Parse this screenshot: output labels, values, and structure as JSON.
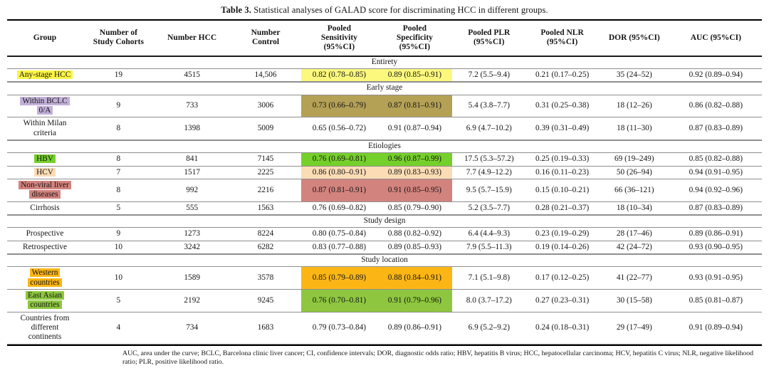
{
  "title": {
    "label_bold": "Table 3.",
    "text": " Statistical analyses of GALAD score for discriminating HCC in different groups."
  },
  "colors": {
    "yellow": "#fbf444",
    "yellow_cell": "#fbf87d",
    "purple": "#c3b0d9",
    "olive": "#b4a156",
    "green": "#76d02c",
    "peach": "#fbdcb5",
    "salmon": "#d3837e",
    "orange": "#fbb616",
    "lime": "#8ec73f"
  },
  "table": {
    "columns": [
      "Group",
      "Number of\nStudy Cohorts",
      "Number HCC",
      "Number\nControl",
      "Pooled\nSensitivity\n(95%CI)",
      "Pooled\nSpecificity\n(95%CI)",
      "Pooled PLR\n(95%CI)",
      "Pooled NLR\n(95%CI)",
      "DOR (95%CI)",
      "AUC (95%CI)"
    ],
    "sections": [
      {
        "label": "Entirety",
        "rows": [
          {
            "group": "Any-stage HCC",
            "hl": {
              "group": "yellow",
              "sens": "yellow_cell",
              "spec": "yellow_cell"
            },
            "cells": [
              "19",
              "4515",
              "14,506",
              "0.82 (0.78–0.85)",
              "0.89 (0.85–0.91)",
              "7.2 (5.5–9.4)",
              "0.21 (0.17–0.25)",
              "35 (24–52)",
              "0.92 (0.89–0.94)"
            ]
          }
        ]
      },
      {
        "label": "Early stage",
        "rows": [
          {
            "group": "Within BCLC\n0/A",
            "hl": {
              "group": "purple",
              "sens": "olive",
              "spec": "olive"
            },
            "cells": [
              "9",
              "733",
              "3006",
              "0.73 (0.66–0.79)",
              "0.87 (0.81–0.91)",
              "5.4 (3.8–7.7)",
              "0.31 (0.25–0.38)",
              "18 (12–26)",
              "0.86 (0.82–0.88)"
            ]
          },
          {
            "group": "Within Milan\ncriteria",
            "cells": [
              "8",
              "1398",
              "5009",
              "0.65 (0.56–0.72)",
              "0.91 (0.87–0.94)",
              "6.9 (4.7–10.2)",
              "0.39 (0.31–0.49)",
              "18 (11–30)",
              "0.87 (0.83–0.89)"
            ]
          }
        ]
      },
      {
        "label": "Etiologies",
        "rows": [
          {
            "group": "HBV",
            "hl": {
              "group": "green",
              "sens": "green",
              "spec": "green"
            },
            "cells": [
              "8",
              "841",
              "7145",
              "0.76 (0.69–0.81)",
              "0.96 (0.87–0.99)",
              "17.5 (5.3–57.2)",
              "0.25 (0.19–0.33)",
              "69 (19–249)",
              "0.85 (0.82–0.88)"
            ]
          },
          {
            "group": "HCV",
            "hl": {
              "group": "peach",
              "sens": "peach",
              "spec": "peach"
            },
            "cells": [
              "7",
              "1517",
              "2225",
              "0.86 (0.80–0.91)",
              "0.89 (0.83–0.93)",
              "7.7 (4.9–12.2)",
              "0.16 (0.11–0.23)",
              "50 (26–94)",
              "0.94 (0.91–0.95)"
            ]
          },
          {
            "group": "Non-viral liver\ndiseases",
            "hl": {
              "group": "salmon",
              "sens": "salmon",
              "spec": "salmon"
            },
            "cells": [
              "8",
              "992",
              "2216",
              "0.87 (0.81–0.91)",
              "0.91 (0.85–0.95)",
              "9.5 (5.7–15.9)",
              "0.15 (0.10–0.21)",
              "66 (36–121)",
              "0.94 (0.92–0.96)"
            ]
          },
          {
            "group": "Cirrhosis",
            "cells": [
              "5",
              "555",
              "1563",
              "0.76 (0.69–0.82)",
              "0.85 (0.79–0.90)",
              "5.2 (3.5–7.7)",
              "0.28 (0.21–0.37)",
              "18 (10–34)",
              "0.87 (0.83–0.89)"
            ]
          }
        ]
      },
      {
        "label": "Study design",
        "rows": [
          {
            "group": "Prospective",
            "cells": [
              "9",
              "1273",
              "8224",
              "0.80 (0.75–0.84)",
              "0.88 (0.82–0.92)",
              "6.4 (4.4–9.3)",
              "0.23 (0.19–0.29)",
              "28 (17–46)",
              "0.89 (0.86–0.91)"
            ]
          },
          {
            "group": "Retrospective",
            "cells": [
              "10",
              "3242",
              "6282",
              "0.83 (0.77–0.88)",
              "0.89 (0.85–0.93)",
              "7.9 (5.5–11.3)",
              "0.19 (0.14–0.26)",
              "42 (24–72)",
              "0.93 (0.90–0.95)"
            ]
          }
        ]
      },
      {
        "label": "Study location",
        "rows": [
          {
            "group": "Western\ncountries",
            "hl": {
              "group": "orange",
              "sens": "orange",
              "spec": "orange"
            },
            "cells": [
              "10",
              "1589",
              "3578",
              "0.85 (0.79–0.89)",
              "0.88 (0.84–0.91)",
              "7.1 (5.1–9.8)",
              "0.17 (0.12–0.25)",
              "41 (22–77)",
              "0.93 (0.91–0.95)"
            ]
          },
          {
            "group": "East Asian\ncountries",
            "hl": {
              "group": "lime",
              "sens": "lime",
              "spec": "lime"
            },
            "cells": [
              "5",
              "2192",
              "9245",
              "0.76 (0.70–0.81)",
              "0.91 (0.79–0.96)",
              "8.0 (3.7–17.2)",
              "0.27 (0.23–0.31)",
              "30 (15–58)",
              "0.85 (0.81–0.87)"
            ]
          },
          {
            "group": "Countries from\ndifferent\ncontinents",
            "cells": [
              "4",
              "734",
              "1683",
              "0.79 (0.73–0.84)",
              "0.89 (0.86–0.91)",
              "6.9 (5.2–9.2)",
              "0.24 (0.18–0.31)",
              "29 (17–49)",
              "0.91 (0.89–0.94)"
            ]
          }
        ]
      }
    ]
  },
  "footnote": "AUC, area under the curve; BCLC, Barcelona clinic liver cancer; CI, confidence intervals; DOR, diagnostic odds ratio; HBV, hepatitis B virus; HCC, hepatocellular carcinoma; HCV, hepatitis C virus; NLR, negative likelihood ratio; PLR, positive likelihood ratio."
}
